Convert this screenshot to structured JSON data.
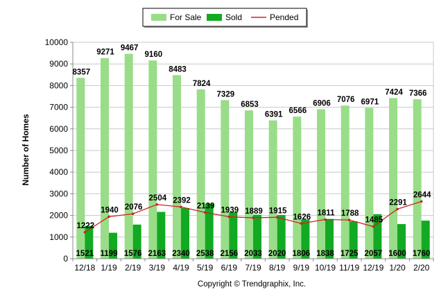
{
  "chart_data": {
    "type": "bar",
    "title": "",
    "xlabel": "",
    "ylabel": "Number of Homes",
    "ylim": [
      0,
      10000
    ],
    "yticks": [
      0,
      1000,
      2000,
      3000,
      4000,
      5000,
      6000,
      7000,
      8000,
      9000,
      10000
    ],
    "categories": [
      "12/18",
      "1/19",
      "2/19",
      "3/19",
      "4/19",
      "5/19",
      "6/19",
      "7/19",
      "8/19",
      "9/19",
      "10/19",
      "11/19",
      "12/19",
      "1/20",
      "2/20"
    ],
    "series": [
      {
        "name": "For Sale",
        "type": "bar",
        "color": "#99dd88",
        "values": [
          8357,
          9271,
          9467,
          9160,
          8483,
          7824,
          7329,
          6853,
          6391,
          6566,
          6906,
          7076,
          6971,
          7424,
          7366
        ]
      },
      {
        "name": "Sold",
        "type": "bar",
        "color": "#11aa22",
        "values": [
          1521,
          1199,
          1576,
          2163,
          2340,
          2538,
          2156,
          2033,
          2020,
          1806,
          1838,
          1725,
          2057,
          1600,
          1760
        ]
      },
      {
        "name": "Pended",
        "type": "line",
        "color": "#cc2222",
        "values": [
          1222,
          1940,
          2076,
          2504,
          2392,
          2139,
          1939,
          1889,
          1915,
          1626,
          1811,
          1788,
          1485,
          2291,
          2644
        ]
      }
    ],
    "legend_position": "top-center",
    "grid": true
  },
  "footer": {
    "copyright": "Copyright © Trendgraphix, Inc."
  }
}
